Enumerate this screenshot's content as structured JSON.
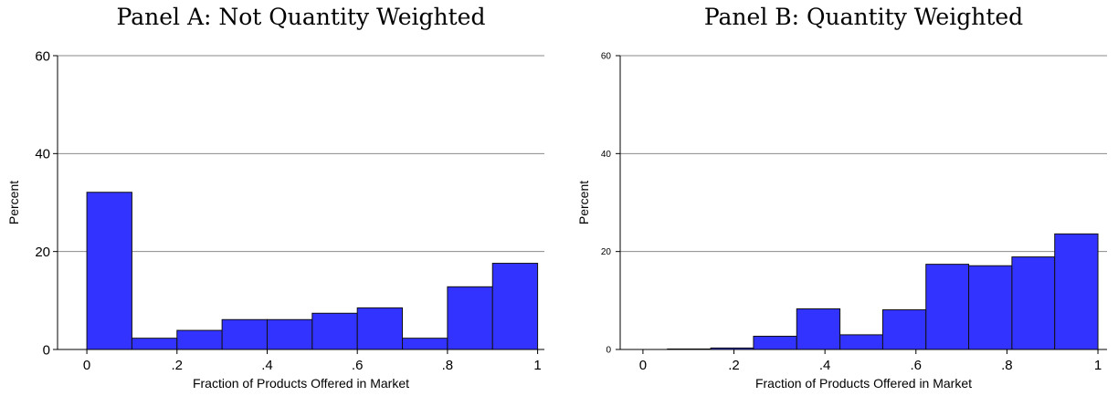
{
  "colors": {
    "bar_fill": "#3333ff",
    "bar_stroke": "#111111",
    "grid": "#8a8a8a",
    "axis": "#000000"
  },
  "chart_data": [
    {
      "type": "bar",
      "title": "Panel A: Not Quantity Weighted",
      "xlabel": "Fraction of Products Offered in Market",
      "ylabel": "Percent",
      "xlim": [
        -0.065,
        1.015
      ],
      "ylim": [
        0,
        60
      ],
      "xticks": [
        0,
        0.2,
        0.4,
        0.6,
        0.8,
        1
      ],
      "xtick_labels": [
        "0",
        ".2",
        ".4",
        ".6",
        ".8",
        "1"
      ],
      "yticks": [
        0,
        20,
        40,
        60
      ],
      "ytick_labels": [
        "0",
        "20",
        "40",
        "60"
      ],
      "grid": true,
      "bins": [
        {
          "x0": 0.0,
          "x1": 0.1,
          "value": 32.1
        },
        {
          "x0": 0.1,
          "x1": 0.2,
          "value": 2.3
        },
        {
          "x0": 0.2,
          "x1": 0.3,
          "value": 3.9
        },
        {
          "x0": 0.3,
          "x1": 0.4,
          "value": 6.1
        },
        {
          "x0": 0.4,
          "x1": 0.5,
          "value": 6.1
        },
        {
          "x0": 0.5,
          "x1": 0.6,
          "value": 7.4
        },
        {
          "x0": 0.6,
          "x1": 0.7,
          "value": 8.5
        },
        {
          "x0": 0.7,
          "x1": 0.8,
          "value": 2.3
        },
        {
          "x0": 0.8,
          "x1": 0.9,
          "value": 12.8
        },
        {
          "x0": 0.9,
          "x1": 1.0,
          "value": 17.6
        }
      ]
    },
    {
      "type": "bar",
      "title": "Panel B: Quantity Weighted",
      "xlabel": "Fraction of Products Offered in Market",
      "ylabel": "Percent",
      "xlim": [
        -0.05,
        1.02
      ],
      "ylim": [
        0,
        60
      ],
      "xticks": [
        0,
        0.2,
        0.4,
        0.6,
        0.8,
        1
      ],
      "xtick_labels": [
        "0",
        ".2",
        ".4",
        ".6",
        ".8",
        "1"
      ],
      "yticks": [
        0,
        20,
        40,
        60
      ],
      "ytick_labels": [
        "0",
        "20",
        "40",
        "60"
      ],
      "grid": true,
      "bins": [
        {
          "x0": 0.054,
          "x1": 0.149,
          "value": 0.1
        },
        {
          "x0": 0.149,
          "x1": 0.243,
          "value": 0.3
        },
        {
          "x0": 0.243,
          "x1": 0.338,
          "value": 2.7
        },
        {
          "x0": 0.338,
          "x1": 0.433,
          "value": 8.3
        },
        {
          "x0": 0.433,
          "x1": 0.527,
          "value": 3.0
        },
        {
          "x0": 0.527,
          "x1": 0.622,
          "value": 8.1
        },
        {
          "x0": 0.622,
          "x1": 0.716,
          "value": 17.4
        },
        {
          "x0": 0.716,
          "x1": 0.811,
          "value": 17.1
        },
        {
          "x0": 0.811,
          "x1": 0.905,
          "value": 18.9
        },
        {
          "x0": 0.905,
          "x1": 1.0,
          "value": 23.6
        }
      ]
    }
  ]
}
